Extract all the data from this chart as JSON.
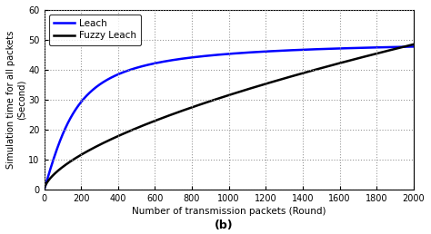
{
  "title": "",
  "xlabel": "Number of transmission packets (Round)",
  "ylabel": "Simulation time for all packets\n(Second)",
  "subtitle": "(b)",
  "xlim": [
    0,
    2000
  ],
  "ylim": [
    0,
    60
  ],
  "xticks": [
    0,
    200,
    400,
    600,
    800,
    1000,
    1200,
    1400,
    1600,
    1800,
    2000
  ],
  "yticks": [
    0,
    10,
    20,
    30,
    40,
    50,
    60
  ],
  "leach_color": "#0000ff",
  "fuzzy_leach_color": "#000000",
  "leach_label": "Leach",
  "fuzzy_leach_label": "Fuzzy Leach",
  "line_width": 1.8,
  "background_color": "#ffffff",
  "grid_color": "#999999",
  "leach_plateau": 50.2,
  "fuzzy_max": 48.5
}
